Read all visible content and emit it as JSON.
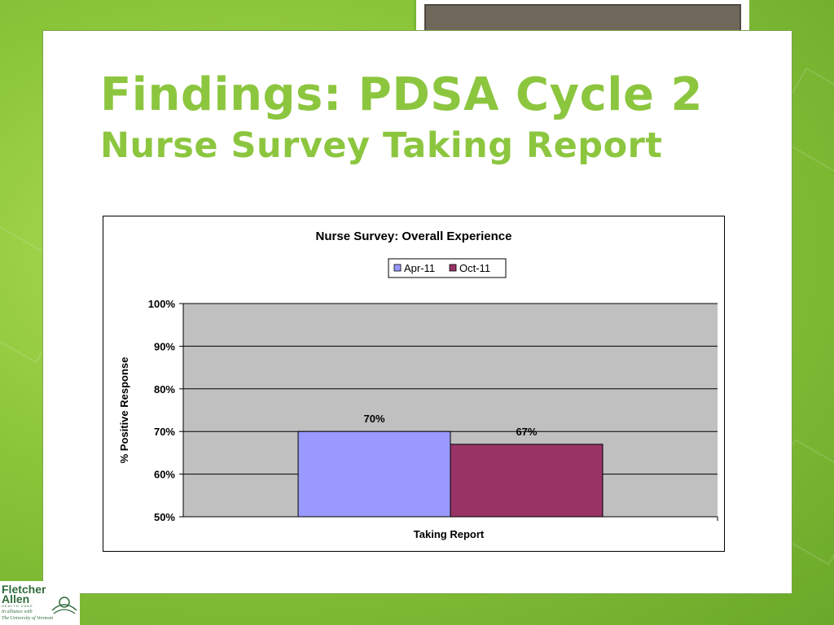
{
  "slide": {
    "title": "Findings:  PDSA Cycle 2",
    "subtitle": "Nurse Survey Taking Report"
  },
  "colors": {
    "title_green": "#8cc63f",
    "plot_background": "#c0c0c0",
    "series_apr": "#9999ff",
    "series_oct": "#993366"
  },
  "chart_data": {
    "type": "bar",
    "title": "Nurse Survey:  Overall Experience",
    "xlabel": "Taking Report",
    "ylabel": "% Positive Response",
    "categories": [
      "Taking Report"
    ],
    "series": [
      {
        "name": "Apr-11",
        "values": [
          70
        ],
        "label": "70%",
        "color": "#9999ff"
      },
      {
        "name": "Oct-11",
        "values": [
          67
        ],
        "label": "67%",
        "color": "#993366"
      }
    ],
    "ylim": [
      50,
      100
    ],
    "yticks": [
      {
        "value": 100,
        "label": "100%"
      },
      {
        "value": 90,
        "label": "90%"
      },
      {
        "value": 80,
        "label": "80%"
      },
      {
        "value": 70,
        "label": "70%"
      },
      {
        "value": 60,
        "label": "60%"
      },
      {
        "value": 50,
        "label": "50%"
      }
    ],
    "grid": true,
    "legend": "top-center"
  },
  "logo": {
    "line1": "Fletcher",
    "line2": "Allen",
    "line3": "HEALTH CARE",
    "line4": "In alliance with",
    "line5": "The University of Vermont"
  }
}
